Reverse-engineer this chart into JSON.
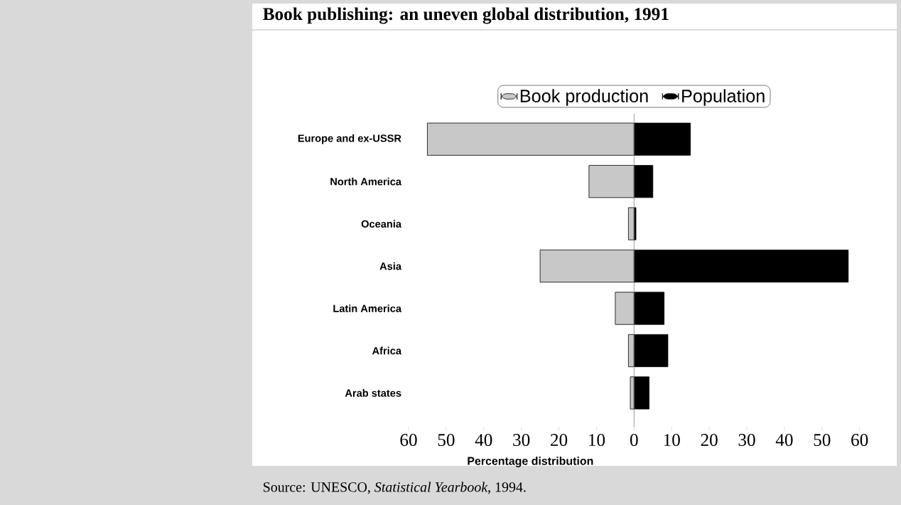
{
  "chart_data": {
    "type": "bar",
    "orientation": "horizontal",
    "title": "Book publishing: an uneven global distribution, 1991",
    "categories": [
      "Europe and ex-USSR",
      "North America",
      "Oceania",
      "Asia",
      "Latin  America",
      "Africa",
      "Arab states"
    ],
    "series": [
      {
        "name": "Book production",
        "color": "#c8c8c8",
        "values": [
          -55,
          -12,
          -1.5,
          -25,
          -5,
          -1.5,
          -1
        ]
      },
      {
        "name": "Population",
        "color": "#000000",
        "values": [
          15,
          5,
          0.5,
          57,
          8,
          9,
          4
        ]
      }
    ],
    "xlim": [
      -60,
      60
    ],
    "xticks": [
      {
        "value": -60,
        "label": "60"
      },
      {
        "value": -50,
        "label": "50"
      },
      {
        "value": -40,
        "label": "40"
      },
      {
        "value": -30,
        "label": "30"
      },
      {
        "value": -20,
        "label": "20"
      },
      {
        "value": -10,
        "label": "10"
      },
      0,
      10,
      20,
      30,
      40,
      50,
      60
    ],
    "xlabel": "Percentage distribution",
    "legend": "top",
    "stacked": true,
    "ref_lines": [
      {
        "axis": "x",
        "value": 0,
        "color": "#808080"
      }
    ],
    "annotations": [
      "Source: UNESCO, *Statistical Yearbook*, 1994."
    ]
  }
}
